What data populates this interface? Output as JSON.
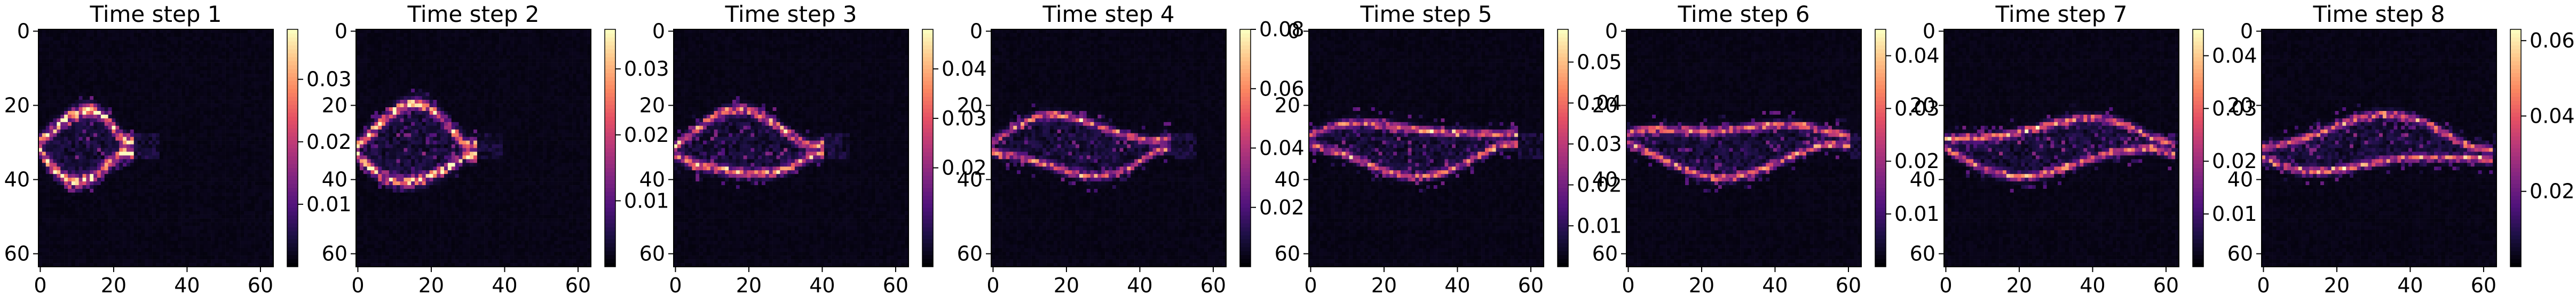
{
  "figure": {
    "panel_count": 8
  },
  "colormap": {
    "name": "magma",
    "stops": [
      "#000004",
      "#1c1044",
      "#4f127b",
      "#812581",
      "#b5367a",
      "#e55064",
      "#fb8761",
      "#fec287",
      "#fcfdbf"
    ]
  },
  "chart_data": [
    {
      "type": "heatmap",
      "title": "Time step 1",
      "grid_size": 64,
      "x_ticks": [
        "0",
        "20",
        "40",
        "60"
      ],
      "y_ticks": [
        "0",
        "20",
        "40",
        "60"
      ],
      "colorbar": {
        "min": 0.0,
        "max": 0.038,
        "ticks": [
          0.01,
          0.02,
          0.03
        ],
        "tick_labels": [
          "0.01",
          "0.02",
          "0.03"
        ]
      },
      "shape": {
        "length": 25,
        "amp": 3.5,
        "bulge": 8,
        "width": 1.6,
        "hot": 0.9,
        "noise": 0.12
      }
    },
    {
      "type": "heatmap",
      "title": "Time step 2",
      "grid_size": 64,
      "x_ticks": [
        "0",
        "20",
        "40",
        "60"
      ],
      "y_ticks": [
        "0",
        "20",
        "40",
        "60"
      ],
      "colorbar": {
        "min": 0.0,
        "max": 0.036,
        "ticks": [
          0.01,
          0.02,
          0.03
        ],
        "tick_labels": [
          "0.01",
          "0.02",
          "0.03"
        ]
      },
      "shape": {
        "length": 32,
        "amp": 4.5,
        "bulge": 9,
        "width": 1.5,
        "hot": 0.85,
        "noise": 0.14
      }
    },
    {
      "type": "heatmap",
      "title": "Time step 3",
      "grid_size": 64,
      "x_ticks": [
        "0",
        "20",
        "40",
        "60"
      ],
      "y_ticks": [
        "0",
        "20",
        "40",
        "60"
      ],
      "colorbar": {
        "min": 0.0,
        "max": 0.048,
        "ticks": [
          0.02,
          0.03,
          0.04
        ],
        "tick_labels": [
          "0.02",
          "0.03",
          "0.04"
        ]
      },
      "shape": {
        "length": 40,
        "amp": 6,
        "bulge": 7,
        "width": 1.2,
        "hot": 0.7,
        "noise": 0.16
      }
    },
    {
      "type": "heatmap",
      "title": "Time step 4",
      "grid_size": 64,
      "x_ticks": [
        "0",
        "20",
        "40",
        "60"
      ],
      "y_ticks": [
        "0",
        "20",
        "40",
        "60"
      ],
      "colorbar": {
        "min": 0.0,
        "max": 0.08,
        "ticks": [
          0.02,
          0.04,
          0.06,
          0.08
        ],
        "tick_labels": [
          "0.02",
          "0.04",
          "0.06",
          "0.08"
        ]
      },
      "shape": {
        "length": 48,
        "amp": 7,
        "bulge": 6,
        "width": 1.0,
        "hot": 0.55,
        "noise": 0.14
      }
    },
    {
      "type": "heatmap",
      "title": "Time step 5",
      "grid_size": 64,
      "x_ticks": [
        "0",
        "20",
        "40",
        "60"
      ],
      "y_ticks": [
        "0",
        "20",
        "40",
        "60"
      ],
      "colorbar": {
        "min": 0.0,
        "max": 0.058,
        "ticks": [
          0.01,
          0.02,
          0.03,
          0.04,
          0.05
        ],
        "tick_labels": [
          "0.01",
          "0.02",
          "0.03",
          "0.04",
          "0.05"
        ]
      },
      "shape": {
        "length": 56,
        "amp": 8,
        "bulge": 5,
        "width": 1.0,
        "hot": 0.55,
        "noise": 0.15
      }
    },
    {
      "type": "heatmap",
      "title": "Time step 6",
      "grid_size": 64,
      "x_ticks": [
        "0",
        "20",
        "40",
        "60"
      ],
      "y_ticks": [
        "0",
        "20",
        "40",
        "60"
      ],
      "colorbar": {
        "min": 0.0,
        "max": 0.045,
        "ticks": [
          0.01,
          0.02,
          0.03,
          0.04
        ],
        "tick_labels": [
          "0.01",
          "0.02",
          "0.03",
          "0.04"
        ]
      },
      "shape": {
        "length": 60,
        "amp": 9,
        "bulge": 5,
        "width": 1.0,
        "hot": 0.6,
        "noise": 0.16
      }
    },
    {
      "type": "heatmap",
      "title": "Time step 7",
      "grid_size": 64,
      "x_ticks": [
        "0",
        "20",
        "40",
        "60"
      ],
      "y_ticks": [
        "0",
        "20",
        "40",
        "60"
      ],
      "colorbar": {
        "min": 0.0,
        "max": 0.045,
        "ticks": [
          0.01,
          0.02,
          0.03,
          0.04
        ],
        "tick_labels": [
          "0.01",
          "0.02",
          "0.03",
          "0.04"
        ]
      },
      "shape": {
        "length": 62,
        "amp": 10,
        "bulge": 5,
        "width": 1.0,
        "hot": 0.6,
        "noise": 0.16
      }
    },
    {
      "type": "heatmap",
      "title": "Time step 8",
      "grid_size": 64,
      "x_ticks": [
        "0",
        "20",
        "40",
        "60"
      ],
      "y_ticks": [
        "0",
        "20",
        "40",
        "60"
      ],
      "colorbar": {
        "min": 0.0,
        "max": 0.063,
        "ticks": [
          0.02,
          0.04,
          0.06
        ],
        "tick_labels": [
          "0.02",
          "0.04",
          "0.06"
        ]
      },
      "shape": {
        "length": 62,
        "amp": 10,
        "bulge": 5,
        "width": 1.0,
        "hot": 0.6,
        "noise": 0.16
      }
    }
  ]
}
